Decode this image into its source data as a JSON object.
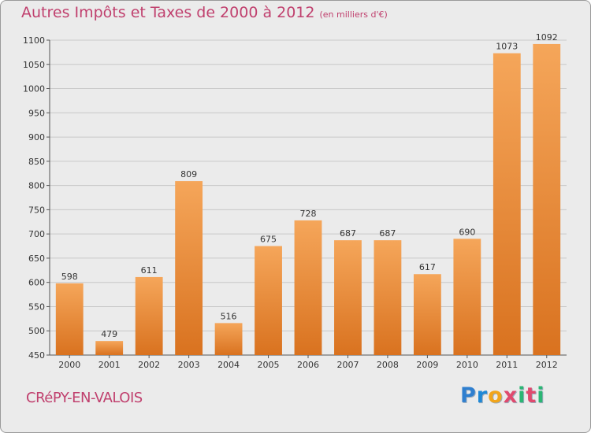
{
  "title": "Autres Impôts et Taxes de 2000 à 2012",
  "subtitle": "(en milliers d'€)",
  "town": "CRéPY-EN-VALOIS",
  "logo": {
    "letters": [
      "P",
      "r",
      "o",
      "x",
      "i",
      "t",
      "i"
    ],
    "colors": [
      "#2f7fcf",
      "#1e88d6",
      "#f2a51a",
      "#e04a6e",
      "#2bb673",
      "#e04a6e",
      "#2bb673"
    ]
  },
  "colors": {
    "bar_light": "#f5a65a",
    "bar_dark": "#d9721f",
    "grid": "#c8c8c8"
  },
  "chart_data": {
    "type": "bar",
    "categories": [
      "2000",
      "2001",
      "2002",
      "2003",
      "2004",
      "2005",
      "2006",
      "2007",
      "2008",
      "2009",
      "2010",
      "2011",
      "2012"
    ],
    "values": [
      598,
      479,
      611,
      809,
      516,
      675,
      728,
      687,
      687,
      617,
      690,
      1073,
      1092
    ],
    "ylim": [
      450,
      1100
    ],
    "yticks": [
      450,
      500,
      550,
      600,
      650,
      700,
      750,
      800,
      850,
      900,
      950,
      1000,
      1050,
      1100
    ],
    "grid": true
  }
}
